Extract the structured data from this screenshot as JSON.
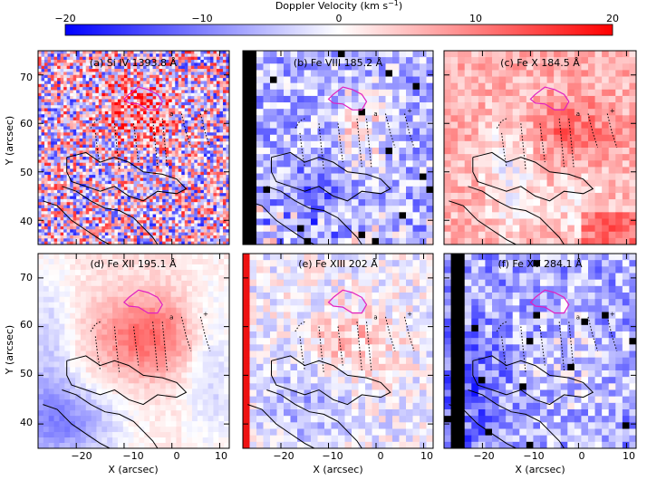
{
  "colorbar": {
    "title_main": "Doppler Velocity (km s",
    "title_sup": "−1",
    "title_end": ")",
    "ticks": [
      "−20",
      "−10",
      "0",
      "10",
      "20"
    ],
    "range": [
      -20,
      20
    ],
    "colors": {
      "negative": "#0000ff",
      "zero": "#ffffff",
      "positive": "#ff0000"
    }
  },
  "chart_data": {
    "type": "heatmap",
    "xlabel": "X (arcsec)",
    "ylabel": "Y (arcsec)",
    "xlim": [
      -28,
      12
    ],
    "ylim": [
      35,
      75
    ],
    "xticks": [
      "−20",
      "−10",
      "0",
      "10"
    ],
    "yticks": [
      "40",
      "50",
      "60",
      "70"
    ],
    "panels": [
      {
        "title": "(a) Si IV 1393.8 Å",
        "contour_label": "a"
      },
      {
        "title": "(b) Fe VIII 185.2 Å",
        "contour_label": "a"
      },
      {
        "title": "(c) Fe X 184.5 Å",
        "contour_label": "a"
      },
      {
        "title": "(d) Fe XII 195.1 Å",
        "contour_label": "a"
      },
      {
        "title": "(e) Fe XIII 202 Å",
        "contour_label": "a"
      },
      {
        "title": "(f) Fe XV 284.1 Å",
        "contour_label": "a"
      }
    ],
    "contour_colors": {
      "loops": "#000000",
      "flux": "#000000",
      "region": "#e020c0"
    }
  }
}
